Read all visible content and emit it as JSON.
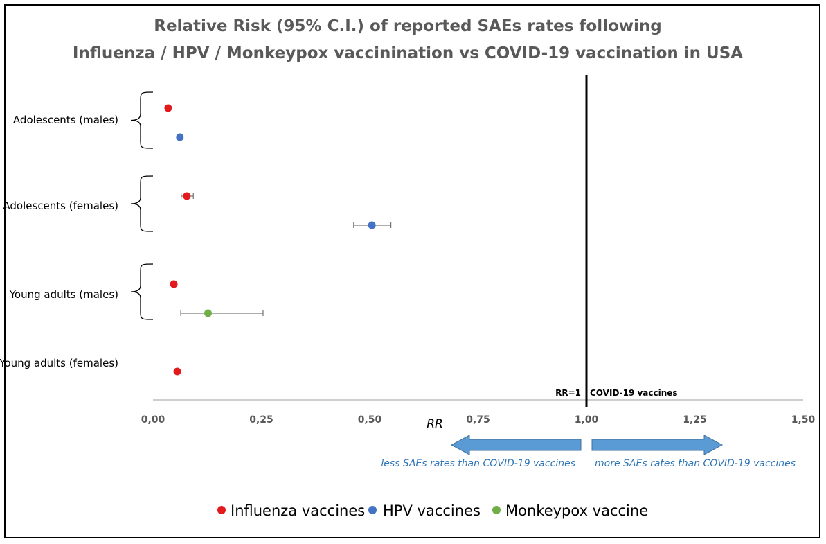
{
  "chart_data": {
    "type": "scatter",
    "title_line1": "Relative Risk (95% C.I.) of reported SAEs rates following",
    "title_line2": "Influenza / HPV / Monkeypox vaccinination vs COVID-19 vaccination in USA",
    "xlabel": "RR",
    "xlim": [
      0,
      1.5
    ],
    "xticks": [
      0,
      0.25,
      0.5,
      0.75,
      1.0,
      1.25,
      1.5
    ],
    "xtick_labels": [
      "0,00",
      "0,25",
      "0,50",
      "0,75",
      "1,00",
      "1,25",
      "1,50"
    ],
    "categories": [
      "Adolescents (males)",
      "Adolescents (females)",
      "Young adults (males)",
      "Young adults (females)"
    ],
    "series": [
      {
        "name": "Influenza vaccines",
        "color": "#e31a1c",
        "points": [
          {
            "category": "Adolescents (males)",
            "rr": 0.035,
            "ci": [
              0.033,
              0.037
            ]
          },
          {
            "category": "Adolescents (females)",
            "rr": 0.078,
            "ci": [
              0.065,
              0.093
            ]
          },
          {
            "category": "Young adults (males)",
            "rr": 0.048,
            "ci": [
              0.046,
              0.05
            ]
          },
          {
            "category": "Young adults (females)",
            "rr": 0.056,
            "ci": [
              0.054,
              0.058
            ]
          }
        ]
      },
      {
        "name": "HPV vaccines",
        "color": "#4472c4",
        "points": [
          {
            "category": "Adolescents (males)",
            "rr": 0.062,
            "ci": [
              0.056,
              0.069
            ]
          },
          {
            "category": "Adolescents (females)",
            "rr": 0.505,
            "ci": [
              0.463,
              0.549
            ]
          }
        ]
      },
      {
        "name": "Monkeypox vaccine",
        "color": "#70ad47",
        "points": [
          {
            "category": "Young adults (males)",
            "rr": 0.127,
            "ci": [
              0.064,
              0.254
            ]
          }
        ]
      }
    ],
    "reference_line": {
      "value": 1.0,
      "left_label": "RR=1",
      "right_label": "COVID-19 vaccines"
    },
    "arrow_left_label": "less SAEs rates than COVID-19 vaccines",
    "arrow_right_label": "more SAEs rates than COVID-19 vaccines",
    "arrow_color": "#5b9bd5",
    "legend_position": "bottom"
  }
}
